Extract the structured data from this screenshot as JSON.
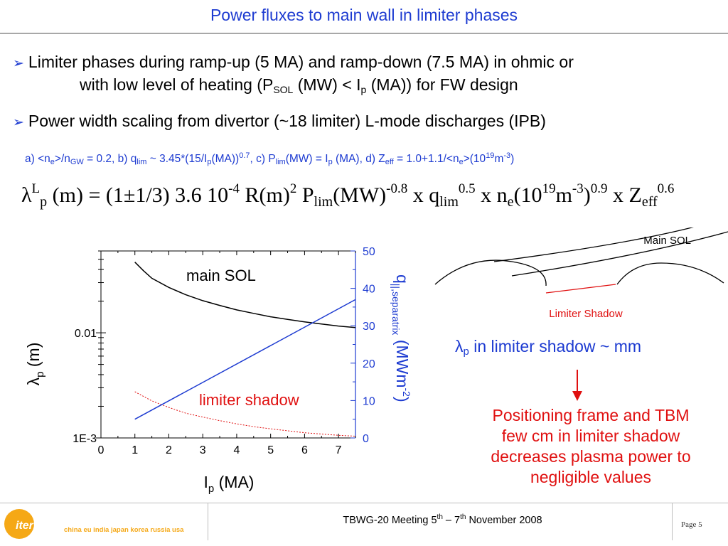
{
  "slide": {
    "title": "Power fluxes to main wall in limiter phases",
    "bullet1": {
      "line1": "Limiter phases during ramp-up (5 MA) and ramp-down (7.5 MA) in ohmic or",
      "line2_a": "with low level of heating (P",
      "line2_sub": "SOL",
      "line2_b": " (MW) < I",
      "line2_sub2": "p",
      "line2_c": " (MA)) for FW design"
    },
    "bullet2": "Power width scaling from divertor (~18 limiter) L-mode discharges (IPB)",
    "definitions": {
      "t1": "a) <n",
      "s1": "e",
      "t2": ">/n",
      "s2": "GW",
      "t3": " = 0.2,  b) q",
      "s3": "lim",
      "t4": " ~ 3.45*(15/I",
      "s4": "p",
      "t5": "(MA))",
      "p5": "0.7",
      "t6": ", c) P",
      "s6": "lim",
      "t7": "(MW) =  I",
      "s7": "p",
      "t8": " (MA), d) Z",
      "s8": "eff",
      "t9": " = 1.0+1.1/<n",
      "s9": "e",
      "t10": ">(10",
      "p10": "19",
      "t11": "m",
      "p11": "-3",
      "t12": ")"
    },
    "formula": {
      "f1": "λ",
      "f1p": "L",
      "f1s": "p",
      "f2": " (m) = (1±1/3) 3.6 10",
      "f2p": "-4",
      "f3": " R(m)",
      "f3p": "2",
      "f4": " P",
      "f4s": "lim",
      "f5": "(MW)",
      "f5p": "-0.8",
      "f6": " x q",
      "f6s": "lim",
      "f6p": "0.5",
      "f7": " x n",
      "f7s": "e",
      "f8": "(10",
      "f8p": "19",
      "f9": "m",
      "f9p": "-3",
      "f10": ")",
      "f10p": "0.9",
      "f11": " x Z",
      "f11s": "eff",
      "f11p": "0.6"
    },
    "diagram": {
      "main_sol": "Main SOL",
      "limiter_shadow": "Limiter Shadow"
    },
    "note": {
      "a": "λ",
      "s": "p",
      "b": " in limiter shadow ~ mm"
    },
    "conclusion": [
      "Positioning frame and TBM",
      "few cm in limiter shadow",
      "decreases plasma power to",
      "negligible values"
    ],
    "footer": {
      "text_a": "TBWG-20 Meeting 5",
      "sup_a": "th",
      "text_b": " – 7",
      "sup_b": "th",
      "text_c": " November 2008",
      "page": "Page 5"
    },
    "logo": {
      "name": "iter",
      "partners": "china eu india japan korea russia usa"
    },
    "colors": {
      "accent": "#1d3bd1",
      "highlight": "#e01010",
      "logo": "#f5a816"
    }
  },
  "chart_data": {
    "type": "line",
    "x_axis": {
      "label": "I",
      "label_sub": "p",
      "label_tail": " (MA)",
      "range": [
        0,
        7.5
      ],
      "ticks": [
        "0",
        "1",
        "2",
        "3",
        "4",
        "5",
        "6",
        "7"
      ]
    },
    "y_left": {
      "label": "λ",
      "label_sub": "p",
      "label_tail": " (m)",
      "scale": "log",
      "range": [
        0.001,
        0.06
      ],
      "ticks": [
        "1E-3",
        "0.01"
      ]
    },
    "y_right": {
      "label": "q",
      "label_sub": "||,separatrix",
      "label_tail": " (MWm",
      "label_sup": "-2",
      "label_end": ")",
      "range": [
        0,
        50
      ],
      "ticks": [
        "0",
        "10",
        "20",
        "30",
        "40",
        "50"
      ]
    },
    "annotations": {
      "main": "main SOL",
      "shadow": "limiter shadow"
    },
    "series": [
      {
        "axis": "left",
        "color": "#000000",
        "style": "solid",
        "x": [
          1.0,
          1.25,
          1.5,
          2.0,
          2.5,
          3.0,
          3.5,
          4.0,
          4.5,
          5.0,
          5.5,
          6.0,
          6.5,
          7.0,
          7.5
        ],
        "y": [
          0.047,
          0.039,
          0.033,
          0.027,
          0.023,
          0.0202,
          0.0182,
          0.0165,
          0.0153,
          0.0142,
          0.0134,
          0.0127,
          0.0121,
          0.0116,
          0.0112
        ]
      },
      {
        "axis": "left",
        "color": "#e01010",
        "style": "dotted",
        "x": [
          1.0,
          1.5,
          2.0,
          2.5,
          3.0,
          3.5,
          4.0,
          4.5,
          5.0,
          5.5,
          6.0,
          6.5,
          7.0,
          7.5
        ],
        "y": [
          0.00275,
          0.00225,
          0.00195,
          0.00172,
          0.00158,
          0.00146,
          0.00136,
          0.00128,
          0.00122,
          0.00117,
          0.00112,
          0.00109,
          0.00106,
          0.00104
        ]
      },
      {
        "axis": "right",
        "color": "#1d3bd1",
        "style": "solid",
        "x": [
          1.0,
          7.5
        ],
        "y": [
          5,
          37
        ]
      }
    ]
  }
}
